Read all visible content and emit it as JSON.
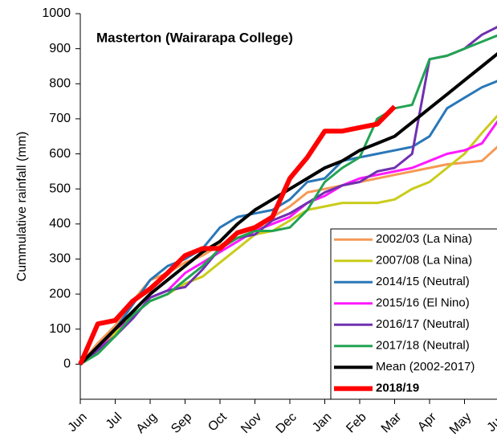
{
  "chart_data": {
    "type": "line",
    "title": "Masterton (Wairarapa College)",
    "y_label": "Cummulative rainfall (mm)",
    "xlim": [
      0,
      12
    ],
    "xticks": [
      {
        "value": 0,
        "label": "Jun"
      },
      {
        "value": 1,
        "label": "Jul"
      },
      {
        "value": 2,
        "label": "Aug"
      },
      {
        "value": 3,
        "label": "Sep"
      },
      {
        "value": 4,
        "label": "Oct"
      },
      {
        "value": 5,
        "label": "Nov"
      },
      {
        "value": 6,
        "label": "Dec"
      },
      {
        "value": 7,
        "label": "Jan"
      },
      {
        "value": 8,
        "label": "Feb"
      },
      {
        "value": 9,
        "label": "Mar"
      },
      {
        "value": 10,
        "label": "Apr"
      },
      {
        "value": 11,
        "label": "May"
      },
      {
        "value": 12,
        "label": "Jun"
      }
    ],
    "ylim": [
      -100,
      1000
    ],
    "yticks": [
      0,
      100,
      200,
      300,
      400,
      500,
      600,
      700,
      800,
      900,
      1000
    ],
    "x": [
      0,
      0.5,
      1,
      1.5,
      2,
      2.5,
      3,
      3.5,
      4,
      4.5,
      5,
      5.5,
      6,
      6.5,
      7,
      7.5,
      8,
      8.5,
      9,
      9.5,
      10,
      10.5,
      11,
      11.5,
      12
    ],
    "legend": "lower right",
    "series": [
      {
        "name": "2002/03 (La Nina)",
        "color": "#f59a55",
        "width": 3,
        "values": [
          0,
          60,
          110,
          180,
          240,
          260,
          290,
          310,
          340,
          360,
          380,
          420,
          450,
          490,
          500,
          510,
          520,
          530,
          540,
          550,
          560,
          570,
          575,
          580,
          625
        ]
      },
      {
        "name": "2007/08 (La Nina)",
        "color": "#c9cc1a",
        "width": 3,
        "values": [
          0,
          40,
          90,
          140,
          180,
          200,
          230,
          250,
          290,
          330,
          370,
          380,
          410,
          440,
          450,
          460,
          460,
          460,
          470,
          500,
          520,
          560,
          600,
          660,
          715
        ]
      },
      {
        "name": "2014/15 (Neutral)",
        "color": "#2a77b8",
        "width": 3,
        "values": [
          0,
          50,
          100,
          170,
          240,
          280,
          300,
          330,
          390,
          420,
          430,
          440,
          470,
          520,
          530,
          580,
          590,
          600,
          610,
          620,
          650,
          730,
          760,
          790,
          810
        ]
      },
      {
        "name": "2015/16 (El Nino)",
        "color": "#ff18ff",
        "width": 3,
        "values": [
          0,
          40,
          100,
          130,
          190,
          210,
          260,
          290,
          320,
          350,
          380,
          400,
          420,
          460,
          480,
          510,
          530,
          540,
          550,
          560,
          580,
          600,
          610,
          630,
          700
        ]
      },
      {
        "name": "2016/17 (Neutral)",
        "color": "#7030b0",
        "width": 3,
        "values": [
          0,
          40,
          80,
          130,
          190,
          210,
          220,
          270,
          330,
          360,
          370,
          410,
          430,
          460,
          490,
          510,
          520,
          550,
          560,
          600,
          870,
          880,
          900,
          940,
          965
        ]
      },
      {
        "name": "2017/18 (Neutral)",
        "color": "#22a352",
        "width": 3,
        "values": [
          0,
          30,
          80,
          140,
          180,
          200,
          240,
          280,
          330,
          360,
          380,
          380,
          390,
          440,
          520,
          560,
          590,
          700,
          730,
          740,
          870,
          880,
          900,
          920,
          940
        ]
      },
      {
        "name": "Mean (2002-2017)",
        "color": "#000000",
        "width": 4,
        "values": [
          0,
          50,
          100,
          150,
          200,
          240,
          280,
          320,
          350,
          400,
          440,
          470,
          500,
          530,
          560,
          580,
          610,
          630,
          650,
          690,
          730,
          770,
          810,
          850,
          890
        ]
      },
      {
        "name": "2018/19",
        "color": "#ff0000",
        "width": 6,
        "values": [
          0,
          115,
          125,
          180,
          215,
          260,
          310,
          330,
          330,
          375,
          390,
          420,
          530,
          590,
          665,
          665,
          675,
          685,
          735,
          null,
          null,
          null,
          null,
          null,
          null
        ]
      }
    ]
  }
}
